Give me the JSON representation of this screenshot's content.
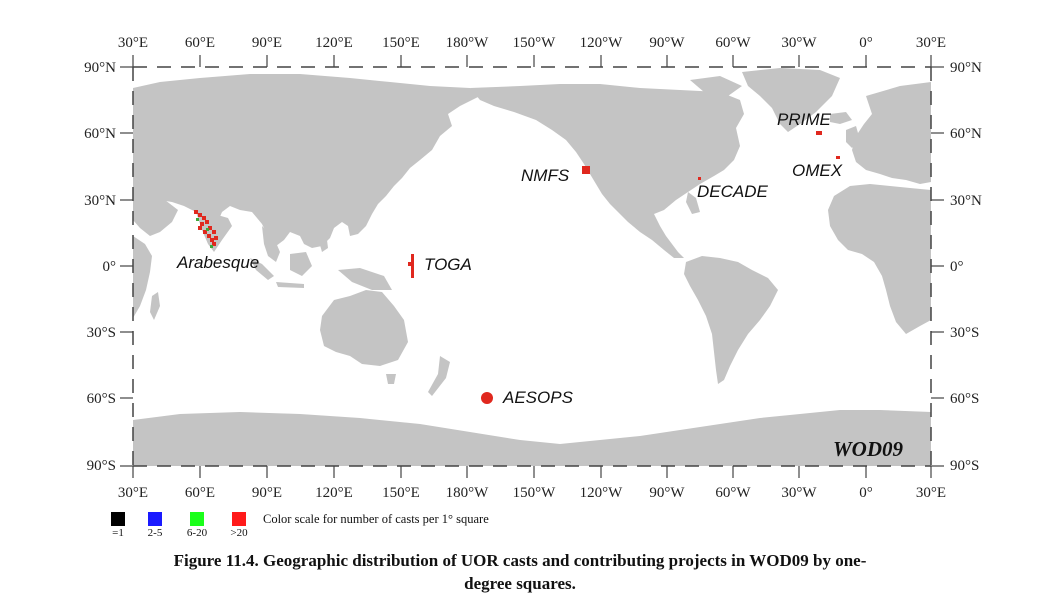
{
  "map": {
    "watermark": "WOD09",
    "top_lon_labels": [
      "30°E",
      "60°E",
      "90°E",
      "120°E",
      "150°E",
      "180°W",
      "150°W",
      "120°W",
      "90°W",
      "60°W",
      "30°W",
      "0°",
      "30°E"
    ],
    "bottom_lon_labels": [
      "30°E",
      "60°E",
      "90°E",
      "120°E",
      "150°E",
      "180°W",
      "150°W",
      "120°W",
      "90°W",
      "60°W",
      "30°W",
      "0°",
      "30°E"
    ],
    "left_lat_labels": [
      "90°N",
      "60°N",
      "30°N",
      "0°",
      "30°S",
      "60°S",
      "90°S"
    ],
    "right_lat_labels": [
      "90°N",
      "60°N",
      "30°N",
      "0°",
      "30°S",
      "60°S",
      "90°S"
    ],
    "projects": [
      {
        "name": "PRIME"
      },
      {
        "name": "NMFS"
      },
      {
        "name": "OMEX"
      },
      {
        "name": "DECADE"
      },
      {
        "name": "Arabesque"
      },
      {
        "name": "TOGA"
      },
      {
        "name": "AESOPS"
      }
    ],
    "colors": {
      "land": "#c4c4c4",
      "ocean": "#ffffff",
      "casts": "#e0281e"
    }
  },
  "legend": {
    "items": [
      {
        "label": "=1",
        "color": "#000000"
      },
      {
        "label": "2-5",
        "color": "#1a1aff"
      },
      {
        "label": "6-20",
        "color": "#1aff1a"
      },
      {
        "label": ">20",
        "color": "#ff1a1a"
      }
    ],
    "description": "Color scale for number of casts per 1° square"
  },
  "caption": {
    "line1": "Figure 11.4. Geographic distribution of UOR casts and contributing projects in WOD09 by one-",
    "line2": "degree squares."
  }
}
